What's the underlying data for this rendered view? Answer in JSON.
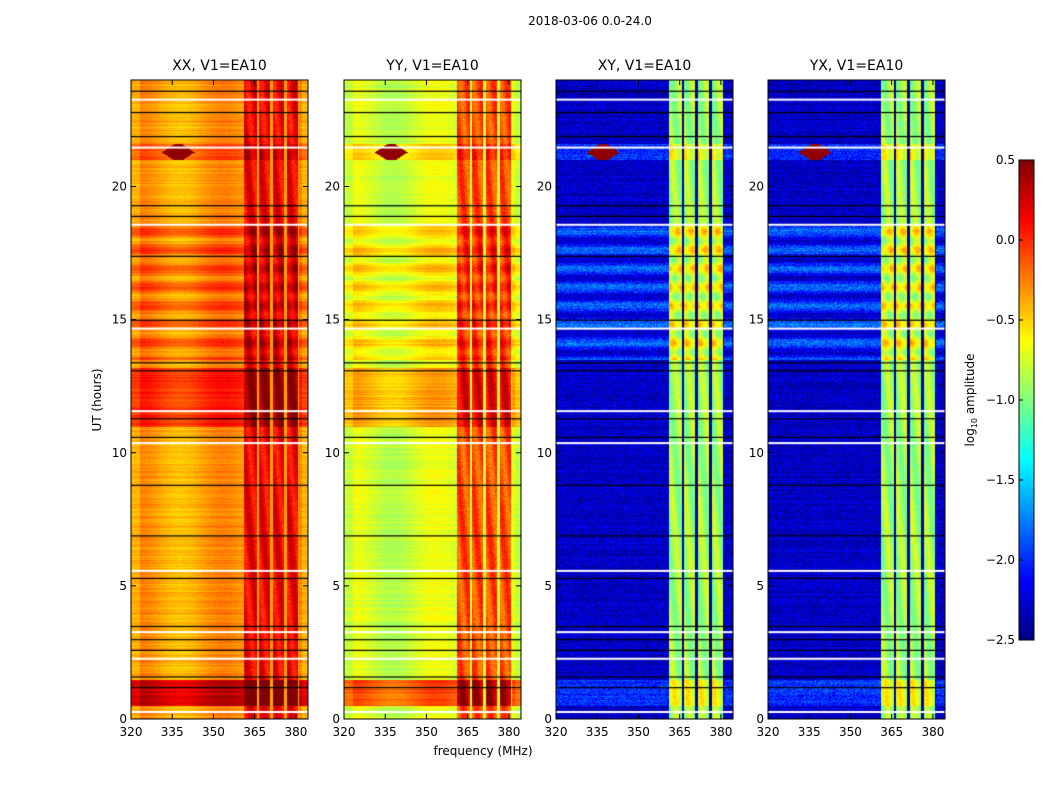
{
  "chart_data": {
    "type": "heatmap",
    "title": "2018-03-06 0.0-24.0",
    "xlabel": "frequency (MHz)",
    "ylabel": "UT (hours)",
    "xlim": [
      320,
      384.4
    ],
    "ylim": [
      0,
      24
    ],
    "xticks": [
      320,
      335,
      350,
      365,
      380
    ],
    "yticks": [
      0,
      5,
      10,
      15,
      20
    ],
    "colorbar": {
      "label": "log10 amplitude",
      "label_main": "log",
      "label_sub": "10",
      "label_rest": " amplitude",
      "colormap": "jet",
      "range": [
        -2.5,
        0.5
      ],
      "ticks": [
        "0.5",
        "0.0",
        "−0.5",
        "−1.0",
        "−1.5",
        "−2.0",
        "−2.5"
      ],
      "tick_values": [
        0.5,
        0.0,
        -0.5,
        -1.0,
        -1.5,
        -2.0,
        -2.5
      ]
    },
    "rfi_band_mhz": [
      361,
      381
    ],
    "band_gaps_mhz": [
      366,
      371,
      376,
      381
    ],
    "flagged_ut_hours": [
      0.3,
      1.2,
      1.6,
      2.3,
      2.6,
      3.0,
      3.3,
      3.5,
      5.3,
      5.6,
      6.9,
      8.8,
      10.4,
      10.6,
      11.3,
      11.6,
      13.1,
      13.4,
      14.7,
      15.0,
      17.4,
      18.6,
      18.9,
      19.3,
      21.5,
      21.9,
      22.8,
      23.3,
      23.6
    ],
    "panels": [
      {
        "title": "XX, V1=EA10",
        "base_level": -0.35,
        "band_level": 0.15
      },
      {
        "title": "YY, V1=EA10",
        "base_level": -0.75,
        "band_level": -0.1
      },
      {
        "title": "XY, V1=EA10",
        "base_level": -2.3,
        "band_level": -0.9
      },
      {
        "title": "YX, V1=EA10",
        "base_level": -2.3,
        "band_level": -0.9
      }
    ]
  }
}
